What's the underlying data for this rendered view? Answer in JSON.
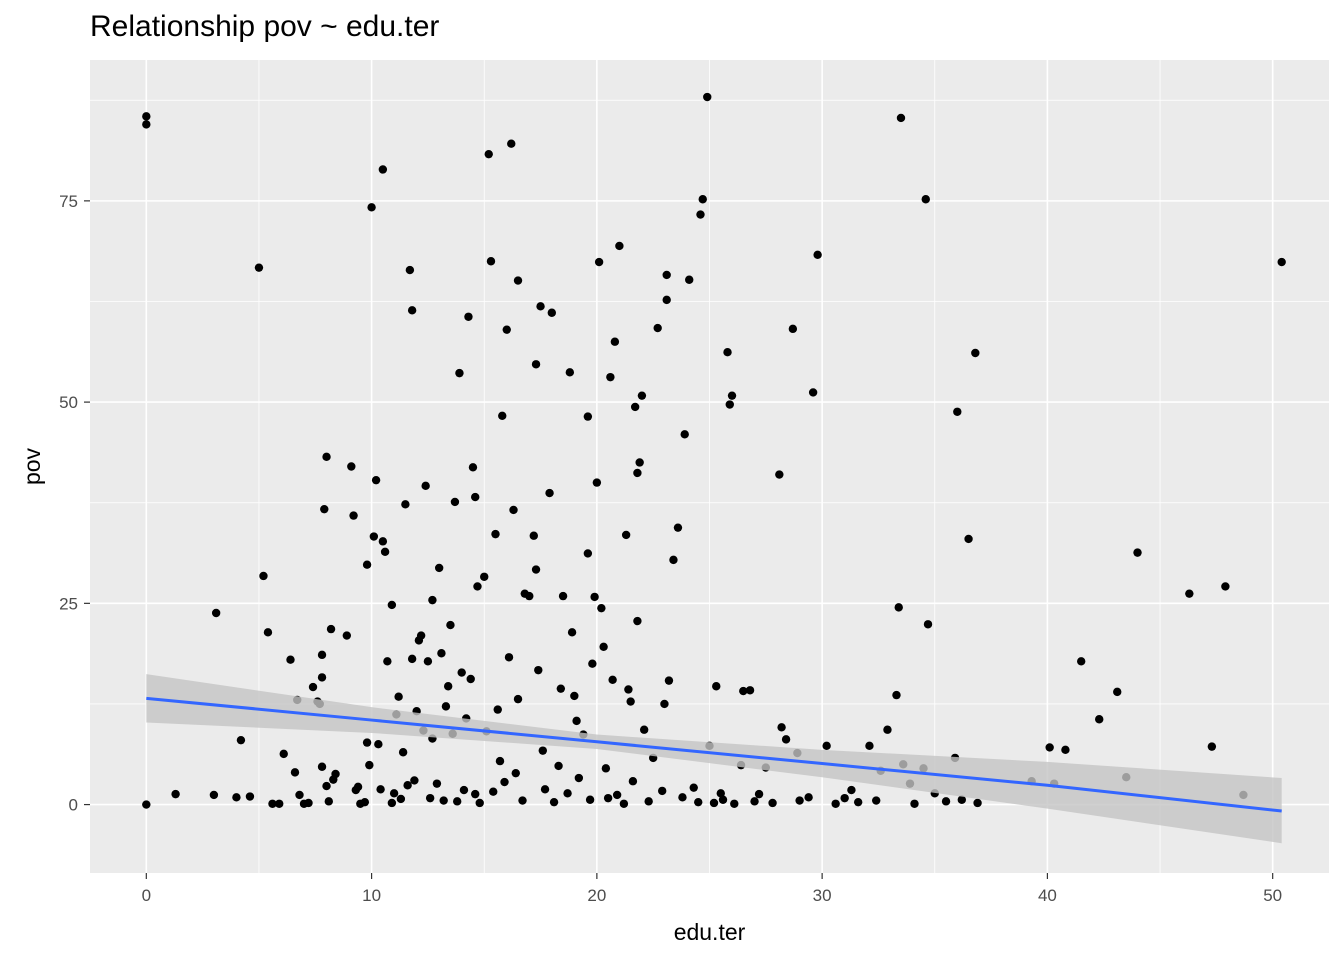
{
  "chart_data": {
    "type": "scatter",
    "title": "Relationship pov ~ edu.ter",
    "xlabel": "edu.ter",
    "ylabel": "pov",
    "xlim": [
      -2.5,
      52.5
    ],
    "ylim": [
      -8.5,
      92.5
    ],
    "x_ticks": [
      0,
      10,
      20,
      30,
      40,
      50
    ],
    "y_ticks": [
      0,
      25,
      50,
      75
    ],
    "grid": true,
    "legend": "none",
    "colors": {
      "panel": "#ebebeb",
      "grid": "#ffffff",
      "points": "#000000",
      "fit_line": "#3366ff",
      "ci_band": "#c4c4c4"
    },
    "fit": {
      "method": "linear",
      "x": [
        0,
        10,
        20,
        30,
        40,
        50.4
      ],
      "y": [
        13.2,
        10.5,
        7.8,
        5.1,
        2.4,
        -0.8
      ],
      "ci_lower": [
        10.2,
        8.9,
        6.9,
        3.4,
        -0.5,
        -4.8
      ],
      "ci_upper": [
        16.2,
        12.1,
        8.7,
        6.8,
        5.3,
        3.3
      ]
    },
    "points": [
      [
        0,
        85.5
      ],
      [
        0,
        84.5
      ],
      [
        0,
        0
      ],
      [
        1.3,
        1.3
      ],
      [
        3,
        1.2
      ],
      [
        3.1,
        23.8
      ],
      [
        4,
        0.9
      ],
      [
        4.2,
        8
      ],
      [
        4.6,
        1
      ],
      [
        5,
        66.7
      ],
      [
        5.2,
        28.4
      ],
      [
        5.4,
        21.4
      ],
      [
        5.6,
        0.1
      ],
      [
        5.9,
        0.1
      ],
      [
        6.1,
        6.3
      ],
      [
        6.4,
        18
      ],
      [
        6.6,
        4
      ],
      [
        6.7,
        13
      ],
      [
        6.8,
        1.2
      ],
      [
        7,
        0.1
      ],
      [
        7.2,
        0.2
      ],
      [
        7.4,
        14.6
      ],
      [
        7.6,
        12.8
      ],
      [
        7.7,
        12.5
      ],
      [
        7.8,
        15.8
      ],
      [
        7.8,
        18.6
      ],
      [
        7.8,
        4.7
      ],
      [
        7.9,
        36.7
      ],
      [
        8,
        43.2
      ],
      [
        8,
        2.3
      ],
      [
        8.1,
        0.4
      ],
      [
        8.2,
        21.8
      ],
      [
        8.3,
        3.1
      ],
      [
        8.4,
        3.8
      ],
      [
        8.9,
        21
      ],
      [
        9.1,
        42
      ],
      [
        9.2,
        35.9
      ],
      [
        9.3,
        1.8
      ],
      [
        9.4,
        2.2
      ],
      [
        9.5,
        0.1
      ],
      [
        9.7,
        0.3
      ],
      [
        9.8,
        7.7
      ],
      [
        9.8,
        29.8
      ],
      [
        9.9,
        4.9
      ],
      [
        10,
        74.2
      ],
      [
        10.1,
        33.3
      ],
      [
        10.2,
        40.3
      ],
      [
        10.3,
        7.5
      ],
      [
        10.4,
        1.9
      ],
      [
        10.5,
        78.9
      ],
      [
        10.5,
        32.7
      ],
      [
        10.6,
        31.4
      ],
      [
        10.7,
        17.8
      ],
      [
        10.9,
        24.8
      ],
      [
        10.9,
        0.2
      ],
      [
        11,
        1.4
      ],
      [
        11.1,
        11.2
      ],
      [
        11.2,
        13.4
      ],
      [
        11.3,
        0.7
      ],
      [
        11.4,
        6.5
      ],
      [
        11.5,
        37.3
      ],
      [
        11.6,
        2.4
      ],
      [
        11.7,
        66.4
      ],
      [
        11.8,
        61.4
      ],
      [
        11.8,
        18.1
      ],
      [
        11.9,
        3
      ],
      [
        12,
        11.6
      ],
      [
        12.1,
        20.4
      ],
      [
        12.2,
        21
      ],
      [
        12.3,
        9.2
      ],
      [
        12.4,
        39.6
      ],
      [
        12.5,
        17.8
      ],
      [
        12.6,
        0.8
      ],
      [
        12.7,
        25.4
      ],
      [
        12.7,
        8.2
      ],
      [
        12.9,
        2.6
      ],
      [
        13,
        29.4
      ],
      [
        13.1,
        18.8
      ],
      [
        13.2,
        0.5
      ],
      [
        13.3,
        12.2
      ],
      [
        13.4,
        14.7
      ],
      [
        13.5,
        22.3
      ],
      [
        13.6,
        8.8
      ],
      [
        13.7,
        37.6
      ],
      [
        13.8,
        0.4
      ],
      [
        13.9,
        53.6
      ],
      [
        14,
        16.4
      ],
      [
        14.1,
        1.8
      ],
      [
        14.2,
        10.7
      ],
      [
        14.3,
        60.6
      ],
      [
        14.4,
        15.6
      ],
      [
        14.5,
        41.9
      ],
      [
        14.6,
        38.2
      ],
      [
        14.6,
        1.3
      ],
      [
        14.7,
        27.1
      ],
      [
        14.8,
        0.2
      ],
      [
        15,
        28.3
      ],
      [
        15.1,
        9.1
      ],
      [
        15.2,
        80.8
      ],
      [
        15.3,
        67.5
      ],
      [
        15.4,
        1.6
      ],
      [
        15.5,
        33.6
      ],
      [
        15.6,
        11.8
      ],
      [
        15.7,
        5.4
      ],
      [
        15.8,
        48.3
      ],
      [
        15.9,
        2.8
      ],
      [
        16,
        59
      ],
      [
        16.1,
        18.3
      ],
      [
        16.2,
        82.1
      ],
      [
        16.3,
        36.6
      ],
      [
        16.4,
        3.9
      ],
      [
        16.5,
        65.1
      ],
      [
        16.5,
        13.1
      ],
      [
        16.7,
        0.5
      ],
      [
        16.8,
        26.2
      ],
      [
        17,
        25.9
      ],
      [
        17.2,
        33.4
      ],
      [
        17.3,
        54.7
      ],
      [
        17.3,
        29.2
      ],
      [
        17.4,
        16.7
      ],
      [
        17.5,
        61.9
      ],
      [
        17.6,
        6.7
      ],
      [
        17.7,
        1.9
      ],
      [
        17.9,
        38.7
      ],
      [
        18,
        61.1
      ],
      [
        18.1,
        0.3
      ],
      [
        18.3,
        4.8
      ],
      [
        18.4,
        14.4
      ],
      [
        18.5,
        25.9
      ],
      [
        18.7,
        1.4
      ],
      [
        18.8,
        53.7
      ],
      [
        18.9,
        21.4
      ],
      [
        19,
        13.5
      ],
      [
        19.1,
        10.4
      ],
      [
        19.2,
        3.3
      ],
      [
        19.4,
        8.7
      ],
      [
        19.6,
        48.2
      ],
      [
        19.6,
        31.2
      ],
      [
        19.7,
        0.6
      ],
      [
        19.8,
        17.5
      ],
      [
        19.9,
        25.8
      ],
      [
        20,
        40
      ],
      [
        20.1,
        67.4
      ],
      [
        20.2,
        24.4
      ],
      [
        20.3,
        19.6
      ],
      [
        20.4,
        4.5
      ],
      [
        20.5,
        0.8
      ],
      [
        20.6,
        53.1
      ],
      [
        20.7,
        15.5
      ],
      [
        20.8,
        57.5
      ],
      [
        20.9,
        1.2
      ],
      [
        21,
        69.4
      ],
      [
        21.2,
        0.1
      ],
      [
        21.3,
        33.5
      ],
      [
        21.4,
        14.3
      ],
      [
        21.5,
        12.8
      ],
      [
        21.6,
        2.9
      ],
      [
        21.7,
        49.4
      ],
      [
        21.8,
        22.8
      ],
      [
        21.8,
        41.2
      ],
      [
        21.9,
        42.5
      ],
      [
        22,
        50.8
      ],
      [
        22.1,
        9.3
      ],
      [
        22.3,
        0.4
      ],
      [
        22.5,
        5.8
      ],
      [
        22.7,
        59.2
      ],
      [
        22.9,
        1.7
      ],
      [
        23,
        12.5
      ],
      [
        23.1,
        65.8
      ],
      [
        23.1,
        62.7
      ],
      [
        23.2,
        15.4
      ],
      [
        23.4,
        30.4
      ],
      [
        23.6,
        34.4
      ],
      [
        23.8,
        0.9
      ],
      [
        23.9,
        46
      ],
      [
        24.1,
        65.2
      ],
      [
        24.3,
        2.1
      ],
      [
        24.5,
        0.3
      ],
      [
        24.6,
        73.3
      ],
      [
        24.7,
        75.2
      ],
      [
        24.9,
        87.9
      ],
      [
        25,
        7.3
      ],
      [
        25.2,
        0.2
      ],
      [
        25.3,
        14.7
      ],
      [
        25.5,
        1.4
      ],
      [
        25.6,
        0.6
      ],
      [
        25.8,
        56.2
      ],
      [
        25.9,
        49.7
      ],
      [
        26,
        50.8
      ],
      [
        26.1,
        0.1
      ],
      [
        26.4,
        4.9
      ],
      [
        26.5,
        14.1
      ],
      [
        26.8,
        14.2
      ],
      [
        27,
        0.4
      ],
      [
        27.2,
        1.3
      ],
      [
        27.5,
        4.6
      ],
      [
        27.8,
        0.2
      ],
      [
        28.1,
        41
      ],
      [
        28.2,
        9.6
      ],
      [
        28.4,
        8.1
      ],
      [
        28.7,
        59.1
      ],
      [
        28.9,
        6.4
      ],
      [
        29,
        0.5
      ],
      [
        29.4,
        0.9
      ],
      [
        29.6,
        51.2
      ],
      [
        29.8,
        68.3
      ],
      [
        30.2,
        7.3
      ],
      [
        30.6,
        0.1
      ],
      [
        31,
        0.8
      ],
      [
        31.3,
        1.8
      ],
      [
        31.6,
        0.3
      ],
      [
        32.1,
        7.3
      ],
      [
        32.4,
        0.5
      ],
      [
        32.6,
        4.2
      ],
      [
        32.9,
        9.3
      ],
      [
        33.3,
        13.6
      ],
      [
        33.4,
        24.5
      ],
      [
        33.5,
        85.3
      ],
      [
        33.6,
        5
      ],
      [
        33.9,
        2.6
      ],
      [
        34.1,
        0.1
      ],
      [
        34.5,
        4.5
      ],
      [
        34.6,
        75.2
      ],
      [
        34.7,
        22.4
      ],
      [
        35,
        1.4
      ],
      [
        35.5,
        0.4
      ],
      [
        35.9,
        5.8
      ],
      [
        36,
        48.8
      ],
      [
        36.2,
        0.6
      ],
      [
        36.5,
        33
      ],
      [
        36.8,
        56.1
      ],
      [
        36.9,
        0.2
      ],
      [
        39.3,
        2.9
      ],
      [
        40.1,
        7.1
      ],
      [
        40.3,
        2.6
      ],
      [
        40.8,
        6.8
      ],
      [
        41.5,
        17.8
      ],
      [
        42.3,
        10.6
      ],
      [
        43.1,
        14
      ],
      [
        43.5,
        3.4
      ],
      [
        44,
        31.3
      ],
      [
        46.3,
        26.2
      ],
      [
        47.3,
        7.2
      ],
      [
        47.9,
        27.1
      ],
      [
        48.7,
        1.2
      ],
      [
        50.4,
        67.4
      ]
    ]
  }
}
